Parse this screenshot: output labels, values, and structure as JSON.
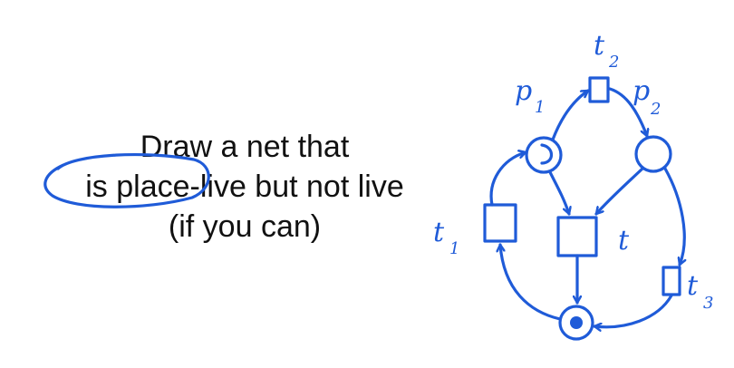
{
  "prompt": {
    "line1": "Draw a net that",
    "line2_prefix": "is ",
    "line2_highlight": "place-live",
    "line2_suffix": " but not live",
    "line3": "(if you can)"
  },
  "net_labels": {
    "p1": "p",
    "p1_sub": "1",
    "p2": "p",
    "p2_sub": "2",
    "t": "t",
    "t1": "t",
    "t1_sub": "1",
    "t2": "t",
    "t2_sub": "2",
    "t3": "t",
    "t3_sub": "3"
  },
  "colors": {
    "ink": "#1f5bd8",
    "text": "#111111",
    "background": "#ffffff"
  }
}
